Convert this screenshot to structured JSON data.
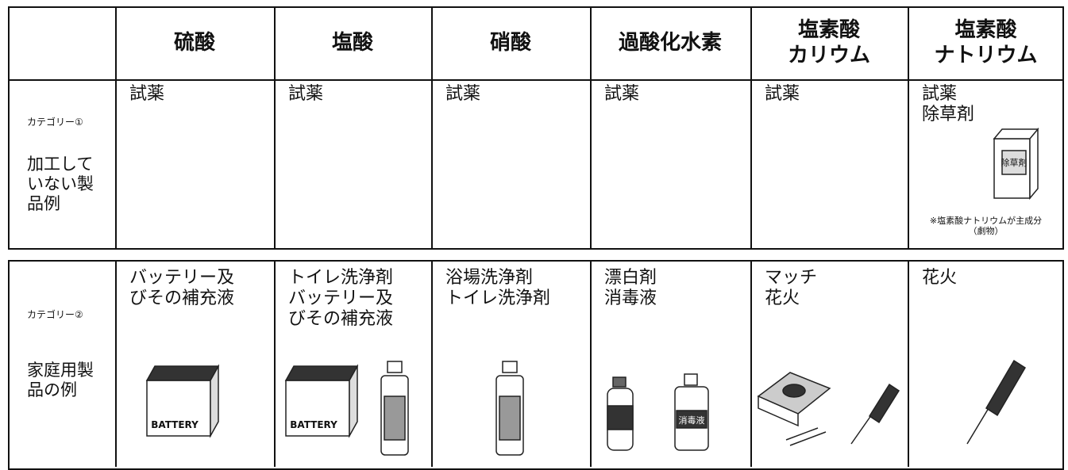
{
  "table1": {
    "headers": [
      [
        "硫酸"
      ],
      [
        "塩酸"
      ],
      [
        "硝酸"
      ],
      [
        "過酸化水素"
      ],
      [
        "塩素酸",
        "カリウム"
      ],
      [
        "塩素酸",
        "ナトリウム"
      ]
    ],
    "category": "カテゴリー①",
    "label": [
      "加工して",
      "いない製",
      "品例"
    ],
    "cells": [
      [
        "試薬"
      ],
      [
        "試薬"
      ],
      [
        "試薬"
      ],
      [
        "試薬"
      ],
      [
        "試薬"
      ],
      [
        "試薬",
        "除草剤"
      ]
    ],
    "note": [
      "※塩素酸ナトリウムが主成分",
      "（劇物）"
    ]
  },
  "table2": {
    "category": "カテゴリー②",
    "label": [
      "家庭用製",
      "品の例"
    ],
    "cells": [
      [
        "バッテリー及",
        "びその補充液"
      ],
      [
        "トイレ洗浄剤",
        "バッテリー及",
        "びその補充液"
      ],
      [
        "浴場洗浄剤",
        "トイレ洗浄剤"
      ],
      [
        "漂白剤",
        "消毒液"
      ],
      [
        "マッチ",
        "花火"
      ],
      [
        "花火"
      ]
    ]
  },
  "icons": {
    "herbicide": "除草剤",
    "battery": "BATTERY",
    "disinfectant": "消毒液"
  }
}
